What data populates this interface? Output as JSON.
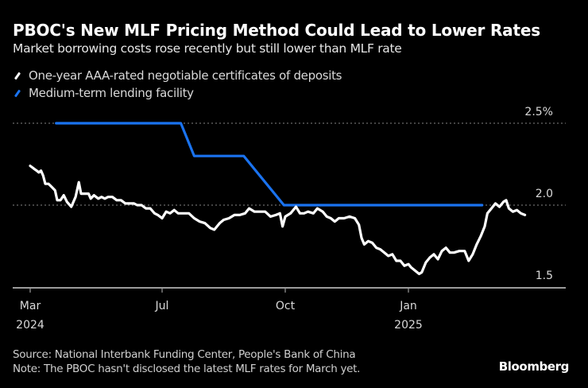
{
  "chart_data": {
    "type": "line",
    "title": "PBOC's New MLF Pricing Method Could Lead to Lower Rates",
    "subtitle": "Market borrowing costs rose recently but still lower than MLF rate",
    "xlabel": "",
    "ylabel": "",
    "y_unit": "%",
    "ylim": [
      1.5,
      2.5
    ],
    "yticks": [
      {
        "value": 2.5,
        "label": "2.5%"
      },
      {
        "value": 2.0,
        "label": "2.0"
      },
      {
        "value": 1.5,
        "label": "1.5"
      }
    ],
    "xticks": [
      {
        "date": "2024-03-01",
        "label": "Mar",
        "sublabel": "2024"
      },
      {
        "date": "2024-07-01",
        "label": "Jul",
        "sublabel": ""
      },
      {
        "date": "2024-10-01",
        "label": "Oct",
        "sublabel": ""
      },
      {
        "date": "2025-01-01",
        "label": "Jan",
        "sublabel": "2025"
      }
    ],
    "grid": "horizontal dotted",
    "legend_position": "top-left",
    "series": [
      {
        "name": "One-year AAA-rated negotiable certificates of deposits",
        "color": "#ffffff",
        "points": [
          [
            "2024-03-01",
            2.24
          ],
          [
            "2024-03-03",
            2.23
          ],
          [
            "2024-03-05",
            2.22
          ],
          [
            "2024-03-07",
            2.21
          ],
          [
            "2024-03-09",
            2.2
          ],
          [
            "2024-03-11",
            2.21
          ],
          [
            "2024-03-13",
            2.18
          ],
          [
            "2024-03-15",
            2.13
          ],
          [
            "2024-03-18",
            2.13
          ],
          [
            "2024-03-21",
            2.11
          ],
          [
            "2024-03-24",
            2.09
          ],
          [
            "2024-03-26",
            2.03
          ],
          [
            "2024-03-29",
            2.03
          ],
          [
            "2024-04-01",
            2.06
          ],
          [
            "2024-04-04",
            2.02
          ],
          [
            "2024-04-08",
            1.99
          ],
          [
            "2024-04-12",
            2.05
          ],
          [
            "2024-04-15",
            2.14
          ],
          [
            "2024-04-17",
            2.07
          ],
          [
            "2024-04-20",
            2.07
          ],
          [
            "2024-04-24",
            2.07
          ],
          [
            "2024-04-26",
            2.04
          ],
          [
            "2024-04-29",
            2.06
          ],
          [
            "2024-05-03",
            2.04
          ],
          [
            "2024-05-06",
            2.05
          ],
          [
            "2024-05-09",
            2.04
          ],
          [
            "2024-05-12",
            2.05
          ],
          [
            "2024-05-16",
            2.05
          ],
          [
            "2024-05-20",
            2.03
          ],
          [
            "2024-05-24",
            2.03
          ],
          [
            "2024-05-28",
            2.01
          ],
          [
            "2024-06-01",
            2.01
          ],
          [
            "2024-06-05",
            2.01
          ],
          [
            "2024-06-08",
            2.0
          ],
          [
            "2024-06-12",
            2.0
          ],
          [
            "2024-06-16",
            1.98
          ],
          [
            "2024-06-20",
            1.98
          ],
          [
            "2024-06-24",
            1.95
          ],
          [
            "2024-06-27",
            1.94
          ],
          [
            "2024-07-01",
            1.92
          ],
          [
            "2024-07-04",
            1.96
          ],
          [
            "2024-07-07",
            1.95
          ],
          [
            "2024-07-10",
            1.97
          ],
          [
            "2024-07-13",
            1.95
          ],
          [
            "2024-07-17",
            1.95
          ],
          [
            "2024-07-21",
            1.95
          ],
          [
            "2024-07-25",
            1.92
          ],
          [
            "2024-07-29",
            1.9
          ],
          [
            "2024-08-02",
            1.89
          ],
          [
            "2024-08-06",
            1.86
          ],
          [
            "2024-08-09",
            1.85
          ],
          [
            "2024-08-13",
            1.89
          ],
          [
            "2024-08-16",
            1.91
          ],
          [
            "2024-08-20",
            1.92
          ],
          [
            "2024-08-24",
            1.94
          ],
          [
            "2024-08-28",
            1.94
          ],
          [
            "2024-09-01",
            1.95
          ],
          [
            "2024-09-04",
            1.98
          ],
          [
            "2024-09-08",
            1.96
          ],
          [
            "2024-09-12",
            1.96
          ],
          [
            "2024-09-16",
            1.96
          ],
          [
            "2024-09-20",
            1.93
          ],
          [
            "2024-09-24",
            1.94
          ],
          [
            "2024-09-27",
            1.95
          ],
          [
            "2024-09-29",
            1.87
          ],
          [
            "2024-10-01",
            1.93
          ],
          [
            "2024-10-05",
            1.95
          ],
          [
            "2024-10-09",
            1.99
          ],
          [
            "2024-10-12",
            1.95
          ],
          [
            "2024-10-15",
            1.95
          ],
          [
            "2024-10-18",
            1.96
          ],
          [
            "2024-10-22",
            1.95
          ],
          [
            "2024-10-25",
            1.98
          ],
          [
            "2024-10-29",
            1.96
          ],
          [
            "2024-11-01",
            1.93
          ],
          [
            "2024-11-04",
            1.92
          ],
          [
            "2024-11-07",
            1.9
          ],
          [
            "2024-11-10",
            1.92
          ],
          [
            "2024-11-14",
            1.92
          ],
          [
            "2024-11-18",
            1.93
          ],
          [
            "2024-11-22",
            1.92
          ],
          [
            "2024-11-25",
            1.88
          ],
          [
            "2024-11-27",
            1.8
          ],
          [
            "2024-11-29",
            1.76
          ],
          [
            "2024-12-02",
            1.78
          ],
          [
            "2024-12-05",
            1.77
          ],
          [
            "2024-12-08",
            1.74
          ],
          [
            "2024-12-11",
            1.73
          ],
          [
            "2024-12-14",
            1.71
          ],
          [
            "2024-12-17",
            1.69
          ],
          [
            "2024-12-20",
            1.7
          ],
          [
            "2024-12-23",
            1.66
          ],
          [
            "2024-12-26",
            1.66
          ],
          [
            "2024-12-29",
            1.63
          ],
          [
            "2025-01-01",
            1.64
          ],
          [
            "2025-01-03",
            1.62
          ],
          [
            "2025-01-06",
            1.6
          ],
          [
            "2025-01-09",
            1.58
          ],
          [
            "2025-01-11",
            1.59
          ],
          [
            "2025-01-14",
            1.65
          ],
          [
            "2025-01-17",
            1.68
          ],
          [
            "2025-01-20",
            1.7
          ],
          [
            "2025-01-23",
            1.67
          ],
          [
            "2025-01-26",
            1.72
          ],
          [
            "2025-01-29",
            1.74
          ],
          [
            "2025-02-01",
            1.71
          ],
          [
            "2025-02-04",
            1.71
          ],
          [
            "2025-02-08",
            1.72
          ],
          [
            "2025-02-12",
            1.72
          ],
          [
            "2025-02-15",
            1.66
          ],
          [
            "2025-02-18",
            1.7
          ],
          [
            "2025-02-21",
            1.76
          ],
          [
            "2025-02-24",
            1.81
          ],
          [
            "2025-02-27",
            1.87
          ],
          [
            "2025-03-01",
            1.95
          ],
          [
            "2025-03-04",
            1.98
          ],
          [
            "2025-03-07",
            2.01
          ],
          [
            "2025-03-10",
            1.99
          ],
          [
            "2025-03-13",
            2.02
          ],
          [
            "2025-03-15",
            2.03
          ],
          [
            "2025-03-17",
            1.98
          ],
          [
            "2025-03-20",
            1.96
          ],
          [
            "2025-03-23",
            1.97
          ],
          [
            "2025-03-26",
            1.95
          ],
          [
            "2025-03-29",
            1.94
          ]
        ]
      },
      {
        "name": "Medium-term lending facility",
        "color": "#1a73f0",
        "points": [
          [
            "2024-03-25",
            2.5
          ],
          [
            "2024-07-15",
            2.5
          ],
          [
            "2024-07-25",
            2.3
          ],
          [
            "2024-08-31",
            2.3
          ],
          [
            "2024-09-30",
            2.0
          ],
          [
            "2025-02-25",
            2.0
          ]
        ]
      }
    ]
  },
  "legend": {
    "items": [
      {
        "label": "One-year AAA-rated negotiable certificates of deposits",
        "color": "#ffffff"
      },
      {
        "label": "Medium-term lending facility",
        "color": "#1a73f0"
      }
    ]
  },
  "footer": {
    "source": "Source: National Interbank Funding Center, People's Bank of China",
    "note": "Note: The PBOC hasn't disclosed the latest MLF rates for March yet.",
    "brand": "Bloomberg"
  }
}
